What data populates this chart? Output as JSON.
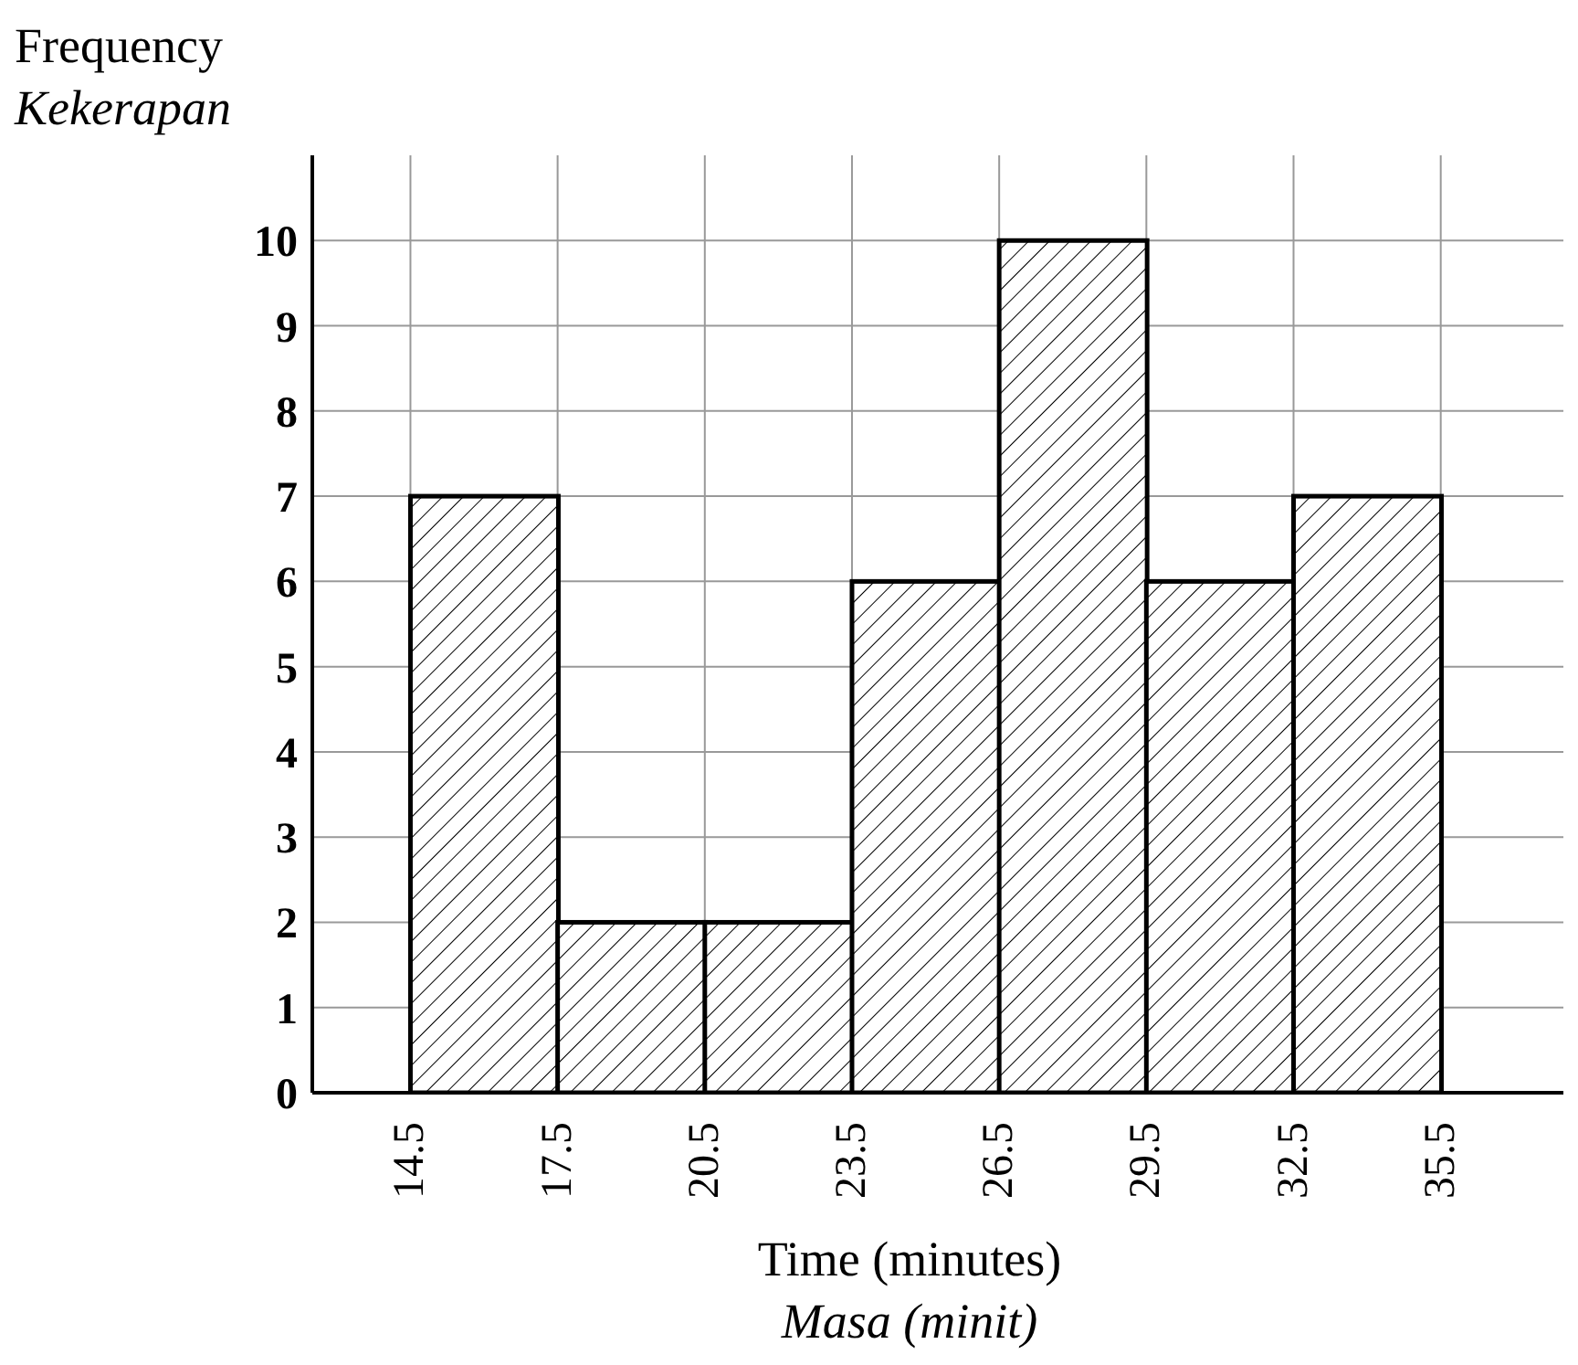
{
  "chart_data": {
    "type": "histogram",
    "xlabel": "Time (minutes)\nMasa (minit)",
    "ylabel": "Frequency\nKekerapan",
    "bins": [
      14.5,
      17.5,
      20.5,
      23.5,
      26.5,
      29.5,
      32.5,
      35.5
    ],
    "values": [
      7,
      2,
      2,
      6,
      10,
      6,
      7
    ],
    "color": "#000000",
    "xlim": [
      12.5,
      38
    ],
    "xticks": [
      14.5,
      17.5,
      20.5,
      23.5,
      26.5,
      29.5,
      32.5,
      35.5
    ],
    "ylim": [
      0,
      11
    ],
    "yticks": [
      0,
      1,
      2,
      3,
      4,
      5,
      6,
      7,
      8,
      9,
      10
    ],
    "grid": true
  }
}
